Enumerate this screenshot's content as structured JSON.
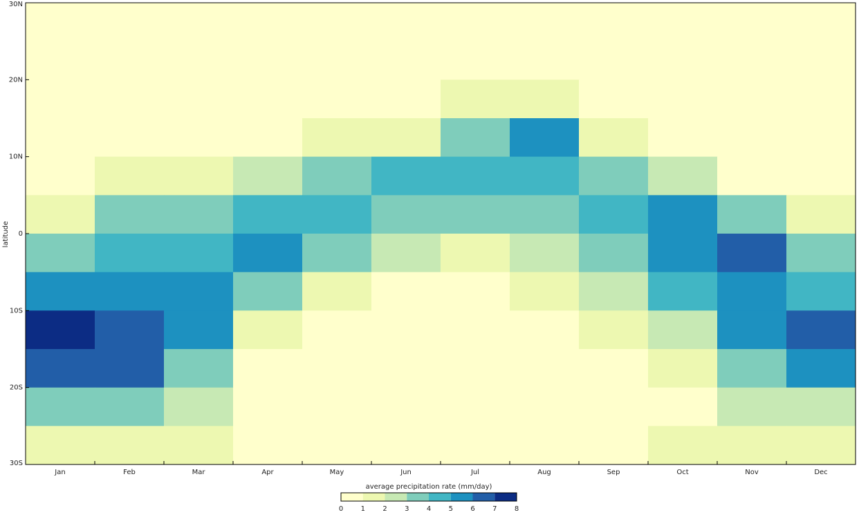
{
  "chart_data": {
    "type": "heatmap",
    "y_label": "latitude",
    "colorbar_title": "average precipitation rate (mm/day)",
    "categories": [
      "Jan",
      "Feb",
      "Mar",
      "Apr",
      "May",
      "Jun",
      "Jul",
      "Aug",
      "Sep",
      "Oct",
      "Nov",
      "Dec"
    ],
    "y": [
      27.5,
      22.5,
      17.5,
      12.5,
      7.5,
      2.5,
      -2.5,
      -7.5,
      -12.5,
      -17.5,
      -22.5,
      -27.5
    ],
    "values": [
      [
        0.5,
        0.5,
        0.5,
        0.5,
        0.5,
        0.5,
        0.5,
        0.5,
        0.5,
        0.5,
        0.5,
        0.5
      ],
      [
        0.5,
        0.5,
        0.5,
        0.5,
        0.5,
        0.5,
        0.5,
        0.5,
        0.5,
        0.5,
        0.5,
        0.5
      ],
      [
        0.5,
        0.5,
        0.5,
        0.5,
        0.5,
        0.5,
        1.0,
        1.2,
        0.5,
        0.5,
        0.5,
        0.5
      ],
      [
        0.5,
        0.5,
        0.5,
        0.5,
        1.0,
        1.5,
        3.5,
        5.5,
        1.8,
        0.5,
        0.5,
        0.5
      ],
      [
        0.5,
        1.2,
        1.5,
        2.5,
        3.5,
        4.0,
        4.5,
        4.5,
        3.5,
        2.5,
        0.8,
        0.5
      ],
      [
        1.5,
        3.5,
        3.5,
        4.5,
        4.5,
        3.5,
        3.5,
        3.5,
        4.2,
        5.0,
        3.5,
        1.5
      ],
      [
        3.5,
        4.5,
        4.8,
        5.5,
        3.5,
        2.0,
        1.5,
        2.5,
        3.5,
        5.5,
        6.2,
        3.8
      ],
      [
        5.5,
        5.5,
        5.5,
        3.5,
        1.5,
        0.5,
        0.5,
        1.2,
        2.5,
        4.5,
        5.5,
        4.5
      ],
      [
        7.2,
        6.5,
        5.2,
        1.5,
        0.5,
        0.5,
        0.5,
        0.5,
        1.2,
        2.5,
        5.0,
        6.5
      ],
      [
        6.5,
        6.5,
        3.8,
        0.5,
        0.5,
        0.5,
        0.5,
        0.5,
        0.5,
        1.2,
        3.5,
        5.2
      ],
      [
        3.5,
        3.5,
        2.5,
        0.5,
        0.5,
        0.5,
        0.5,
        0.5,
        0.5,
        0.5,
        2.5,
        2.5
      ],
      [
        1.5,
        1.5,
        1.5,
        0.5,
        0.5,
        0.5,
        0.5,
        0.5,
        0.5,
        1.2,
        1.5,
        1.5
      ]
    ],
    "ylim": [
      -30,
      30
    ],
    "yticks": [
      {
        "value": 30,
        "label": "30N"
      },
      {
        "value": 20,
        "label": "20N"
      },
      {
        "value": 10,
        "label": "10N"
      },
      0,
      {
        "value": -10,
        "label": "10S"
      },
      {
        "value": -20,
        "label": "20S"
      },
      {
        "value": -30,
        "label": "30S"
      }
    ],
    "levels": [
      0,
      1,
      2,
      3,
      4,
      5,
      6,
      7,
      8
    ],
    "colors": [
      "#ffffcc",
      "#edf8b1",
      "#c7e9b4",
      "#7fcdbb",
      "#41b6c4",
      "#1d91c0",
      "#225ea8",
      "#0c2c84"
    ]
  }
}
